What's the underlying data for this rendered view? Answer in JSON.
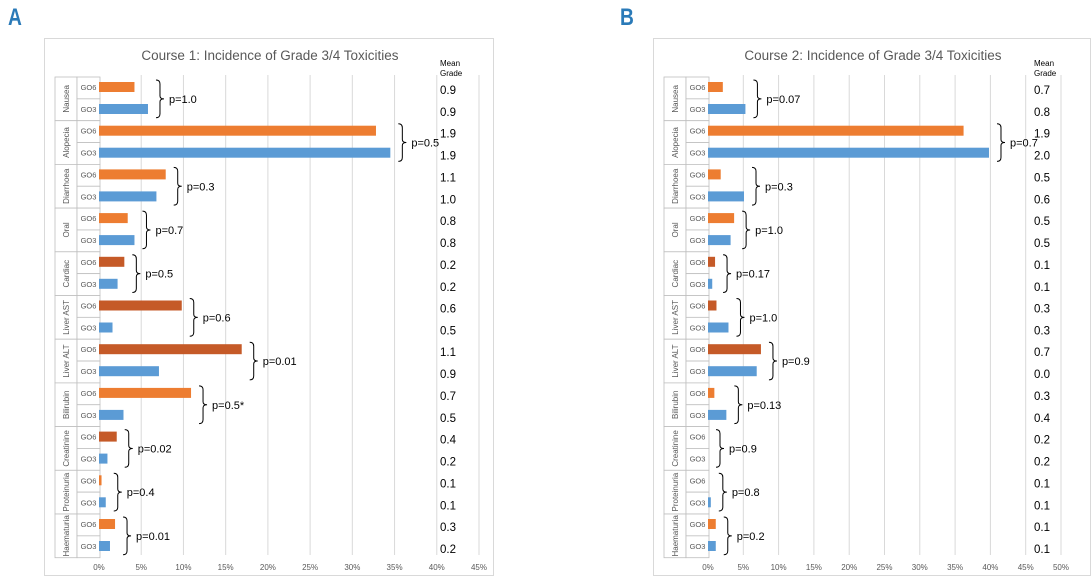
{
  "panels": [
    {
      "letter": "A"
    },
    {
      "letter": "B"
    }
  ],
  "colors": {
    "go6_orange": "#ed7d31",
    "go6_dark": "#c55a28",
    "go3_blue": "#5b9bd5",
    "grid": "#d9d9d9",
    "text": "#404040",
    "panel_letter": "#2a7ab8"
  },
  "chart_data": [
    {
      "type": "bar",
      "orientation": "horizontal",
      "title": "Course 1: Incidence of Grade 3/4 Toxicities",
      "mean_grade_header": [
        "Mean",
        "Grade"
      ],
      "xlim": [
        0,
        45
      ],
      "xticks": [
        "0%",
        "5%",
        "10%",
        "15%",
        "20%",
        "25%",
        "30%",
        "35%",
        "40%",
        "45%"
      ],
      "grid": true,
      "groups": [
        {
          "name": "Nausea",
          "go6": 4.2,
          "go3": 5.8,
          "go6_dark": false,
          "p": "p=1.0",
          "mean": [
            "0.9",
            "0.9"
          ]
        },
        {
          "name": "Alopecia",
          "go6": 32.8,
          "go3": 34.5,
          "go6_dark": false,
          "p": "p=0.5",
          "mean": [
            "1.9",
            "1.9"
          ]
        },
        {
          "name": "Diarrhoea",
          "go6": 7.9,
          "go3": 6.8,
          "go6_dark": false,
          "p": "p=0.3",
          "mean": [
            "1.1",
            "1.0"
          ]
        },
        {
          "name": "Oral",
          "go6": 3.4,
          "go3": 4.2,
          "go6_dark": false,
          "p": "p=0.7",
          "mean": [
            "0.8",
            "0.8"
          ]
        },
        {
          "name": "Cardiac",
          "go6": 3.0,
          "go3": 2.2,
          "go6_dark": true,
          "p": "p=0.5",
          "mean": [
            "0.2",
            "0.2"
          ]
        },
        {
          "name": "Liver AST",
          "go6": 9.8,
          "go3": 1.6,
          "go6_dark": true,
          "p": "p=0.6",
          "mean": [
            "0.6",
            "0.5"
          ]
        },
        {
          "name": "Liver ALT",
          "go6": 16.9,
          "go3": 7.1,
          "go6_dark": true,
          "p": "p=0.01",
          "mean": [
            "1.1",
            "0.9"
          ]
        },
        {
          "name": "Bilirubin",
          "go6": 10.9,
          "go3": 2.9,
          "go6_dark": false,
          "p": "p=0.5*",
          "mean": [
            "0.7",
            "0.5"
          ]
        },
        {
          "name": "Creatinine",
          "go6": 2.1,
          "go3": 1.0,
          "go6_dark": true,
          "p": "p=0.02",
          "mean": [
            "0.4",
            "0.2"
          ]
        },
        {
          "name": "Proteinuria",
          "go6": 0.3,
          "go3": 0.8,
          "go6_dark": false,
          "p": "p=0.4",
          "mean": [
            "0.1",
            "0.1"
          ]
        },
        {
          "name": "Haematuria",
          "go6": 1.9,
          "go3": 1.3,
          "go6_dark": false,
          "p": "p=0.01",
          "mean": [
            "0.3",
            "0.2"
          ]
        }
      ]
    },
    {
      "type": "bar",
      "orientation": "horizontal",
      "title": "Course 2: Incidence of Grade 3/4 Toxicities",
      "mean_grade_header": [
        "Mean",
        "Grade"
      ],
      "xlim": [
        0,
        50
      ],
      "xticks": [
        "0%",
        "5%",
        "10%",
        "15%",
        "20%",
        "25%",
        "30%",
        "35%",
        "40%",
        "45%",
        "50%"
      ],
      "grid": true,
      "groups": [
        {
          "name": "Nausea",
          "go6": 2.1,
          "go3": 5.3,
          "go6_dark": false,
          "p": "p=0.07",
          "mean": [
            "0.7",
            "0.8"
          ]
        },
        {
          "name": "Alopecia",
          "go6": 36.2,
          "go3": 39.8,
          "go6_dark": false,
          "p": "p=0.7",
          "mean": [
            "1.9",
            "2.0"
          ]
        },
        {
          "name": "Diarrhoea",
          "go6": 1.8,
          "go3": 5.1,
          "go6_dark": false,
          "p": "p=0.3",
          "mean": [
            "0.5",
            "0.6"
          ]
        },
        {
          "name": "Oral",
          "go6": 3.7,
          "go3": 3.2,
          "go6_dark": false,
          "p": "p=1.0",
          "mean": [
            "0.5",
            "0.5"
          ]
        },
        {
          "name": "Cardiac",
          "go6": 1.0,
          "go3": 0.6,
          "go6_dark": true,
          "p": "p=0.17",
          "mean": [
            "0.1",
            "0.1"
          ]
        },
        {
          "name": "Liver AST",
          "go6": 1.2,
          "go3": 2.9,
          "go6_dark": true,
          "p": "p=1.0",
          "mean": [
            "0.3",
            "0.3"
          ]
        },
        {
          "name": "Liver ALT",
          "go6": 7.5,
          "go3": 6.9,
          "go6_dark": true,
          "p": "p=0.9",
          "mean": [
            "0.7",
            "0.0"
          ]
        },
        {
          "name": "Bilirubin",
          "go6": 0.9,
          "go3": 2.6,
          "go6_dark": false,
          "p": "p=0.13",
          "mean": [
            "0.3",
            "0.4"
          ]
        },
        {
          "name": "Creatinine",
          "go6": 0,
          "go3": 0,
          "go6_dark": true,
          "p": "p=0.9",
          "mean": [
            "0.2",
            "0.2"
          ]
        },
        {
          "name": "Proteinuria",
          "go6": 0,
          "go3": 0.4,
          "go6_dark": false,
          "p": "p=0.8",
          "mean": [
            "0.1",
            "0.1"
          ]
        },
        {
          "name": "Haematuria",
          "go6": 1.1,
          "go3": 1.1,
          "go6_dark": false,
          "p": "p=0.2",
          "mean": [
            "0.1",
            "0.1"
          ]
        }
      ]
    }
  ]
}
